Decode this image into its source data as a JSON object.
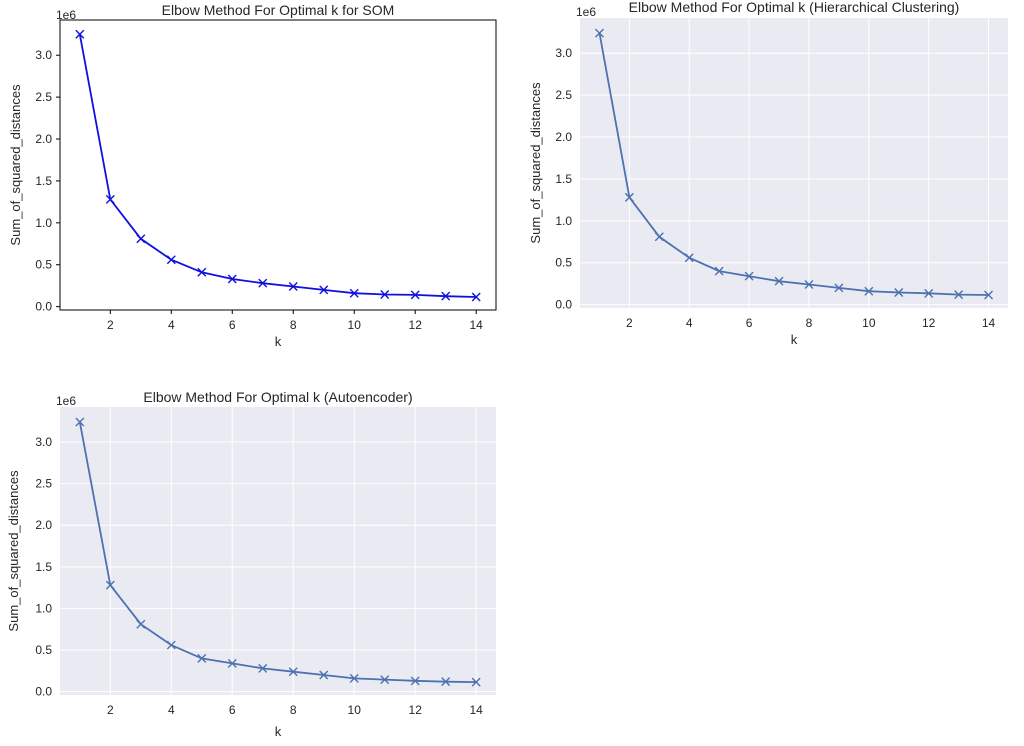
{
  "chart_data": [
    {
      "type": "line",
      "style": "white",
      "title": "Elbow Method For Optimal k for SOM",
      "xlabel": "k",
      "ylabel": "Sum_of_squared_distances",
      "offset_label": "1e6",
      "x": [
        1,
        2,
        3,
        4,
        5,
        6,
        7,
        8,
        9,
        10,
        11,
        12,
        13,
        14
      ],
      "series": [
        {
          "values": [
            3.25,
            1.28,
            0.81,
            0.56,
            0.41,
            0.33,
            0.28,
            0.24,
            0.2,
            0.16,
            0.145,
            0.14,
            0.125,
            0.115
          ]
        }
      ],
      "xticks": [
        "2",
        "4",
        "6",
        "8",
        "10",
        "12",
        "14"
      ],
      "yticks": [
        "0.0",
        "0.5",
        "1.0",
        "1.5",
        "2.0",
        "2.5",
        "3.0"
      ],
      "xlim": [
        0.35,
        14.65
      ],
      "ylim": [
        -0.04,
        3.42
      ],
      "marker": "x",
      "grid": false,
      "colors": {
        "line": "#1010e0",
        "background": "#ffffff",
        "frame": "#000000"
      }
    },
    {
      "type": "line",
      "style": "seaborn",
      "title": "Elbow Method For Optimal k (Hierarchical Clustering)",
      "xlabel": "k",
      "ylabel": "Sum_of_squared_distances",
      "offset_label": "1e6",
      "x": [
        1,
        2,
        3,
        4,
        5,
        6,
        7,
        8,
        9,
        10,
        11,
        12,
        13,
        14
      ],
      "series": [
        {
          "values": [
            3.24,
            1.28,
            0.81,
            0.56,
            0.4,
            0.34,
            0.28,
            0.24,
            0.2,
            0.16,
            0.145,
            0.135,
            0.12,
            0.115
          ]
        }
      ],
      "xticks": [
        "2",
        "4",
        "6",
        "8",
        "10",
        "12",
        "14"
      ],
      "yticks": [
        "0.0",
        "0.5",
        "1.0",
        "1.5",
        "2.0",
        "2.5",
        "3.0"
      ],
      "xlim": [
        0.35,
        14.65
      ],
      "ylim": [
        -0.04,
        3.42
      ],
      "marker": "x",
      "grid": true,
      "colors": {
        "line": "#4c72b0",
        "background": "#eaeaf2",
        "grid": "#ffffff"
      }
    },
    {
      "type": "line",
      "style": "seaborn",
      "title": "Elbow Method For Optimal k (Autoencoder)",
      "xlabel": "k",
      "ylabel": "Sum_of_squared_distances",
      "offset_label": "1e6",
      "x": [
        1,
        2,
        3,
        4,
        5,
        6,
        7,
        8,
        9,
        10,
        11,
        12,
        13,
        14
      ],
      "series": [
        {
          "values": [
            3.24,
            1.28,
            0.81,
            0.56,
            0.4,
            0.34,
            0.28,
            0.24,
            0.2,
            0.16,
            0.145,
            0.13,
            0.12,
            0.115
          ]
        }
      ],
      "xticks": [
        "2",
        "4",
        "6",
        "8",
        "10",
        "12",
        "14"
      ],
      "yticks": [
        "0.0",
        "0.5",
        "1.0",
        "1.5",
        "2.0",
        "2.5",
        "3.0"
      ],
      "xlim": [
        0.35,
        14.65
      ],
      "ylim": [
        -0.04,
        3.42
      ],
      "marker": "x",
      "grid": true,
      "colors": {
        "line": "#4c72b0",
        "background": "#eaeaf2",
        "grid": "#ffffff"
      }
    }
  ]
}
